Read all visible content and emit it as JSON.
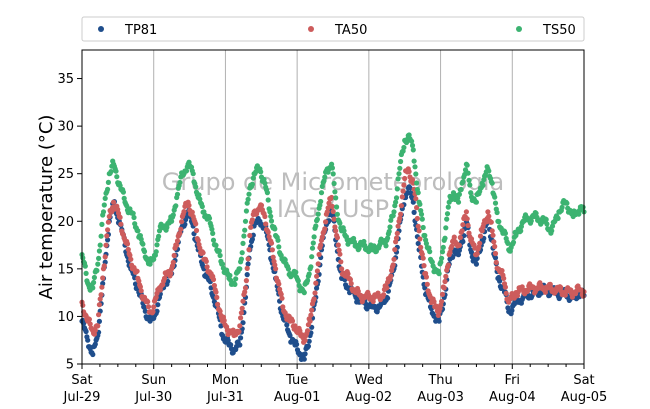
{
  "chart_data": {
    "type": "scatter",
    "title": "",
    "ylabel": "Air temperature (°C)",
    "xlabel": "",
    "ylim": [
      5,
      38
    ],
    "yticks": [
      5,
      10,
      15,
      20,
      25,
      30,
      35
    ],
    "xlim_days": [
      0,
      7
    ],
    "xticks": [
      {
        "day": "Sat",
        "date": "Jul-29"
      },
      {
        "day": "Sun",
        "date": "Jul-30"
      },
      {
        "day": "Mon",
        "date": "Jul-31"
      },
      {
        "day": "Tue",
        "date": "Aug-01"
      },
      {
        "day": "Wed",
        "date": "Aug-02"
      },
      {
        "day": "Thu",
        "date": "Aug-03"
      },
      {
        "day": "Fri",
        "date": "Aug-04"
      },
      {
        "day": "Sat",
        "date": "Aug-05"
      }
    ],
    "grid": "vertical",
    "legend_position": "top",
    "watermark": [
      "Grupo de Micrometeorologia",
      "IAG / USP"
    ],
    "series": [
      {
        "name": "TP81",
        "color": "#1f4e8c",
        "points": [
          [
            0.0,
            9.5
          ],
          [
            0.08,
            7.5
          ],
          [
            0.15,
            6.0
          ],
          [
            0.22,
            8.0
          ],
          [
            0.3,
            14.0
          ],
          [
            0.38,
            20.0
          ],
          [
            0.44,
            22.0
          ],
          [
            0.52,
            20.0
          ],
          [
            0.6,
            17.5
          ],
          [
            0.68,
            15.0
          ],
          [
            0.78,
            13.0
          ],
          [
            0.86,
            11.0
          ],
          [
            0.95,
            9.5
          ],
          [
            1.0,
            9.8
          ],
          [
            1.08,
            12.0
          ],
          [
            1.15,
            13.5
          ],
          [
            1.25,
            14.5
          ],
          [
            1.32,
            17.0
          ],
          [
            1.4,
            19.5
          ],
          [
            1.48,
            21.0
          ],
          [
            1.55,
            19.5
          ],
          [
            1.62,
            17.0
          ],
          [
            1.7,
            15.0
          ],
          [
            1.8,
            13.0
          ],
          [
            1.88,
            11.0
          ],
          [
            1.96,
            8.0
          ],
          [
            2.05,
            7.0
          ],
          [
            2.12,
            6.5
          ],
          [
            2.2,
            7.0
          ],
          [
            2.28,
            12.0
          ],
          [
            2.34,
            17.0
          ],
          [
            2.4,
            19.5
          ],
          [
            2.48,
            20.0
          ],
          [
            2.55,
            19.5
          ],
          [
            2.62,
            17.0
          ],
          [
            2.7,
            14.0
          ],
          [
            2.8,
            10.0
          ],
          [
            2.9,
            8.0
          ],
          [
            2.97,
            7.0
          ],
          [
            3.05,
            6.0
          ],
          [
            3.1,
            5.5
          ],
          [
            3.18,
            8.0
          ],
          [
            3.26,
            12.0
          ],
          [
            3.34,
            17.0
          ],
          [
            3.42,
            20.0
          ],
          [
            3.48,
            21.5
          ],
          [
            3.55,
            17.5
          ],
          [
            3.62,
            14.0
          ],
          [
            3.72,
            13.0
          ],
          [
            3.82,
            12.0
          ],
          [
            3.92,
            11.5
          ],
          [
            4.05,
            11.0
          ],
          [
            4.15,
            11.0
          ],
          [
            4.25,
            12.0
          ],
          [
            4.35,
            15.0
          ],
          [
            4.42,
            19.0
          ],
          [
            4.5,
            22.5
          ],
          [
            4.55,
            23.5
          ],
          [
            4.62,
            22.0
          ],
          [
            4.7,
            17.0
          ],
          [
            4.78,
            13.0
          ],
          [
            4.86,
            11.0
          ],
          [
            4.92,
            10.0
          ],
          [
            4.98,
            9.5
          ],
          [
            5.05,
            12.0
          ],
          [
            5.12,
            15.5
          ],
          [
            5.18,
            17.0
          ],
          [
            5.25,
            16.5
          ],
          [
            5.3,
            18.0
          ],
          [
            5.36,
            20.0
          ],
          [
            5.42,
            17.0
          ],
          [
            5.5,
            15.5
          ],
          [
            5.58,
            18.0
          ],
          [
            5.66,
            20.0
          ],
          [
            5.72,
            18.0
          ],
          [
            5.8,
            14.0
          ],
          [
            5.88,
            13.0
          ],
          [
            5.95,
            10.5
          ],
          [
            6.05,
            11.5
          ],
          [
            6.15,
            12.0
          ],
          [
            6.3,
            12.5
          ],
          [
            6.45,
            12.8
          ],
          [
            6.6,
            12.5
          ],
          [
            6.75,
            12.3
          ],
          [
            6.85,
            12.0
          ],
          [
            6.95,
            12.5
          ],
          [
            7.0,
            12.2
          ]
        ]
      },
      {
        "name": "TA50",
        "color": "#cd5c5c",
        "points": [
          [
            0.0,
            11.5
          ],
          [
            0.08,
            9.5
          ],
          [
            0.15,
            8.5
          ],
          [
            0.22,
            9.0
          ],
          [
            0.3,
            15.0
          ],
          [
            0.38,
            20.5
          ],
          [
            0.44,
            22.0
          ],
          [
            0.52,
            20.5
          ],
          [
            0.6,
            18.0
          ],
          [
            0.68,
            16.0
          ],
          [
            0.78,
            14.0
          ],
          [
            0.86,
            12.0
          ],
          [
            0.95,
            10.5
          ],
          [
            1.0,
            11.0
          ],
          [
            1.08,
            13.0
          ],
          [
            1.15,
            14.0
          ],
          [
            1.25,
            15.0
          ],
          [
            1.32,
            17.5
          ],
          [
            1.4,
            20.5
          ],
          [
            1.48,
            22.0
          ],
          [
            1.55,
            20.5
          ],
          [
            1.62,
            18.0
          ],
          [
            1.7,
            16.0
          ],
          [
            1.8,
            14.5
          ],
          [
            1.88,
            12.0
          ],
          [
            1.96,
            9.5
          ],
          [
            2.05,
            8.5
          ],
          [
            2.12,
            8.0
          ],
          [
            2.2,
            9.0
          ],
          [
            2.28,
            13.0
          ],
          [
            2.34,
            18.5
          ],
          [
            2.4,
            21.0
          ],
          [
            2.48,
            21.5
          ],
          [
            2.55,
            20.5
          ],
          [
            2.62,
            18.0
          ],
          [
            2.7,
            15.0
          ],
          [
            2.8,
            11.0
          ],
          [
            2.9,
            9.5
          ],
          [
            2.97,
            9.0
          ],
          [
            3.05,
            8.0
          ],
          [
            3.1,
            7.5
          ],
          [
            3.18,
            9.5
          ],
          [
            3.26,
            13.5
          ],
          [
            3.34,
            18.0
          ],
          [
            3.42,
            21.0
          ],
          [
            3.48,
            22.5
          ],
          [
            3.55,
            18.5
          ],
          [
            3.62,
            15.0
          ],
          [
            3.72,
            14.0
          ],
          [
            3.82,
            12.5
          ],
          [
            3.92,
            12.0
          ],
          [
            4.05,
            12.0
          ],
          [
            4.15,
            12.0
          ],
          [
            4.25,
            13.0
          ],
          [
            4.35,
            16.0
          ],
          [
            4.42,
            20.0
          ],
          [
            4.5,
            24.5
          ],
          [
            4.55,
            25.5
          ],
          [
            4.62,
            24.0
          ],
          [
            4.7,
            19.0
          ],
          [
            4.78,
            14.5
          ],
          [
            4.86,
            12.0
          ],
          [
            4.92,
            11.0
          ],
          [
            4.98,
            10.5
          ],
          [
            5.05,
            13.0
          ],
          [
            5.12,
            16.5
          ],
          [
            5.18,
            18.0
          ],
          [
            5.25,
            17.5
          ],
          [
            5.3,
            19.0
          ],
          [
            5.36,
            21.0
          ],
          [
            5.42,
            18.0
          ],
          [
            5.5,
            16.5
          ],
          [
            5.58,
            19.0
          ],
          [
            5.66,
            21.0
          ],
          [
            5.72,
            19.0
          ],
          [
            5.8,
            15.0
          ],
          [
            5.88,
            14.0
          ],
          [
            5.95,
            11.5
          ],
          [
            6.05,
            12.5
          ],
          [
            6.15,
            12.8
          ],
          [
            6.3,
            13.0
          ],
          [
            6.45,
            13.0
          ],
          [
            6.6,
            12.8
          ],
          [
            6.75,
            12.6
          ],
          [
            6.85,
            12.5
          ],
          [
            6.95,
            12.8
          ],
          [
            7.0,
            12.6
          ]
        ]
      },
      {
        "name": "TS50",
        "color": "#3cb371",
        "points": [
          [
            0.0,
            16.5
          ],
          [
            0.08,
            13.5
          ],
          [
            0.15,
            13.0
          ],
          [
            0.22,
            15.5
          ],
          [
            0.3,
            21.0
          ],
          [
            0.38,
            25.0
          ],
          [
            0.44,
            26.0
          ],
          [
            0.52,
            24.0
          ],
          [
            0.6,
            22.0
          ],
          [
            0.68,
            21.0
          ],
          [
            0.78,
            19.0
          ],
          [
            0.86,
            17.0
          ],
          [
            0.95,
            15.5
          ],
          [
            1.0,
            16.0
          ],
          [
            1.08,
            19.0
          ],
          [
            1.15,
            19.5
          ],
          [
            1.25,
            20.0
          ],
          [
            1.32,
            22.5
          ],
          [
            1.4,
            25.0
          ],
          [
            1.48,
            26.0
          ],
          [
            1.55,
            25.0
          ],
          [
            1.62,
            22.5
          ],
          [
            1.7,
            21.0
          ],
          [
            1.8,
            19.5
          ],
          [
            1.88,
            17.0
          ],
          [
            1.96,
            15.5
          ],
          [
            2.05,
            14.0
          ],
          [
            2.12,
            13.5
          ],
          [
            2.2,
            15.0
          ],
          [
            2.28,
            20.0
          ],
          [
            2.34,
            23.5
          ],
          [
            2.4,
            25.0
          ],
          [
            2.48,
            25.5
          ],
          [
            2.55,
            24.0
          ],
          [
            2.62,
            21.0
          ],
          [
            2.7,
            18.5
          ],
          [
            2.8,
            16.0
          ],
          [
            2.9,
            14.5
          ],
          [
            2.97,
            14.5
          ],
          [
            3.05,
            13.0
          ],
          [
            3.1,
            12.5
          ],
          [
            3.18,
            15.0
          ],
          [
            3.26,
            19.5
          ],
          [
            3.34,
            23.0
          ],
          [
            3.42,
            25.5
          ],
          [
            3.48,
            26.0
          ],
          [
            3.55,
            21.5
          ],
          [
            3.62,
            19.0
          ],
          [
            3.72,
            18.0
          ],
          [
            3.82,
            17.5
          ],
          [
            3.92,
            17.5
          ],
          [
            4.05,
            17.0
          ],
          [
            4.15,
            17.5
          ],
          [
            4.25,
            18.0
          ],
          [
            4.35,
            21.0
          ],
          [
            4.42,
            25.0
          ],
          [
            4.5,
            28.5
          ],
          [
            4.55,
            29.0
          ],
          [
            4.62,
            27.5
          ],
          [
            4.7,
            22.0
          ],
          [
            4.78,
            18.5
          ],
          [
            4.86,
            16.0
          ],
          [
            4.92,
            15.0
          ],
          [
            4.98,
            14.5
          ],
          [
            5.05,
            18.0
          ],
          [
            5.12,
            22.0
          ],
          [
            5.18,
            23.0
          ],
          [
            5.25,
            22.0
          ],
          [
            5.3,
            24.0
          ],
          [
            5.36,
            26.0
          ],
          [
            5.42,
            23.0
          ],
          [
            5.5,
            22.0
          ],
          [
            5.58,
            24.0
          ],
          [
            5.66,
            25.5
          ],
          [
            5.72,
            24.0
          ],
          [
            5.8,
            20.0
          ],
          [
            5.88,
            19.0
          ],
          [
            5.95,
            17.0
          ],
          [
            6.05,
            18.5
          ],
          [
            6.15,
            20.0
          ],
          [
            6.3,
            20.5
          ],
          [
            6.45,
            20.0
          ],
          [
            6.55,
            19.0
          ],
          [
            6.65,
            21.0
          ],
          [
            6.75,
            22.0
          ],
          [
            6.85,
            20.5
          ],
          [
            6.95,
            21.5
          ],
          [
            7.0,
            21.0
          ]
        ]
      }
    ]
  }
}
